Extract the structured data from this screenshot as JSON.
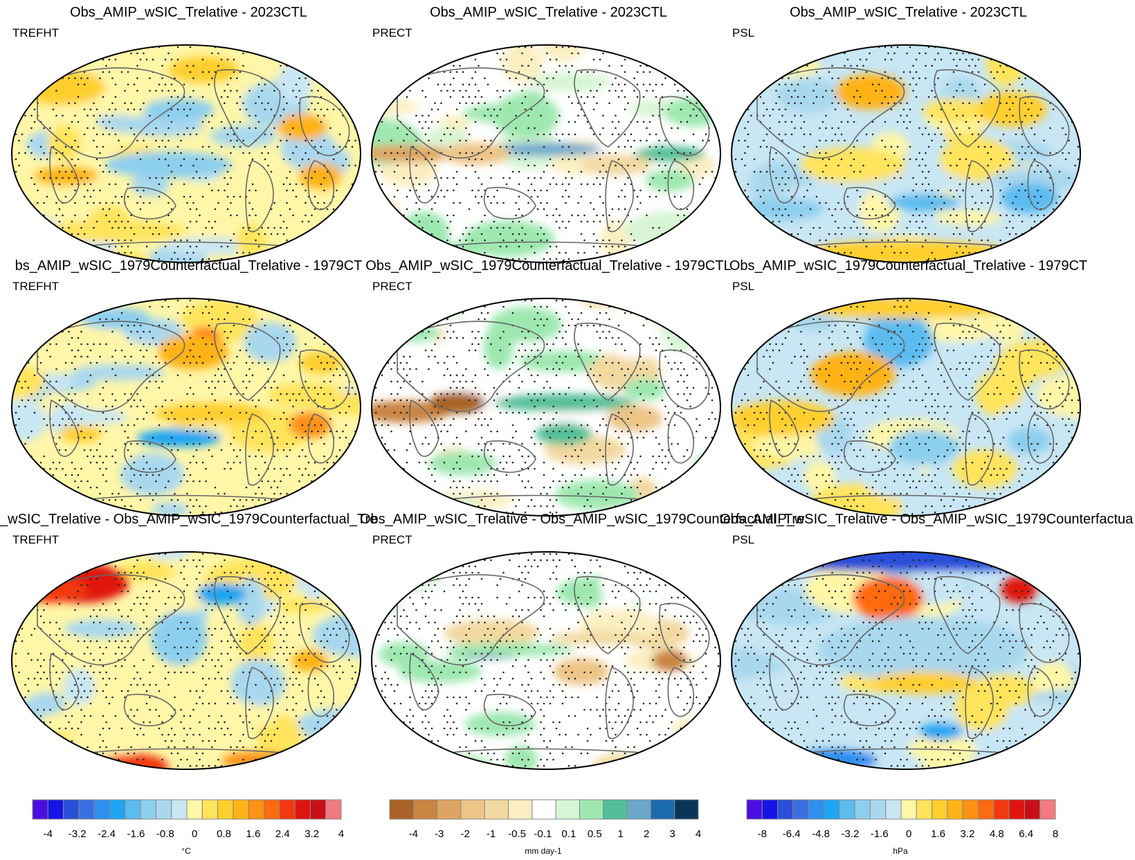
{
  "figure": {
    "rows": [
      {
        "titles": [
          "Obs_AMIP_wSIC_Trelative - 2023CTL",
          "Obs_AMIP_wSIC_Trelative - 2023CTL",
          "Obs_AMIP_wSIC_Trelative - 2023CTL"
        ],
        "variables": [
          "TREFHT",
          "PRECT",
          "PSL"
        ]
      },
      {
        "titles": [
          "bs_AMIP_wSIC_1979Counterfactual_Trelative - 1979CT",
          "Obs_AMIP_wSIC_1979Counterfactual_Trelative - 1979CTL",
          "Obs_AMIP_wSIC_1979Counterfactual_Trelative - 1979CT"
        ],
        "variables": [
          "TREFHT",
          "PRECT",
          "PSL"
        ]
      },
      {
        "titles": [
          "_wSIC_Trelative - Obs_AMIP_wSIC_1979Counterfactual_Tre",
          "Obs_AMIP_wSIC_Trelative - Obs_AMIP_wSIC_1979Counterfactual_Tre",
          "Obs_AMIP_wSIC_Trelative - Obs_AMIP_wSIC_1979Counterfactua"
        ],
        "variables": [
          "TREFHT",
          "PRECT",
          "PSL"
        ]
      }
    ]
  },
  "chart_data": {
    "type": "heatmap",
    "description_labels": "global map difference fields with stippling",
    "colorbars": [
      {
        "variable": "TREFHT",
        "unit": "°C",
        "tick_labels": [
          "-4",
          "-3.2",
          "-2.4",
          "-1.6",
          "-0.8",
          "0",
          "0.8",
          "1.6",
          "2.4",
          "3.2",
          "4"
        ],
        "colors": [
          "#4a0fe0",
          "#1414e6",
          "#2a4fd8",
          "#3a6fe2",
          "#2d8ff0",
          "#1ea6f2",
          "#5cbcf0",
          "#8ccfee",
          "#a9d8ee",
          "#c8e6f4",
          "#fff6a8",
          "#ffe45c",
          "#ffcf2e",
          "#ffb319",
          "#ff9214",
          "#ff6a0f",
          "#f2380f",
          "#e0140e",
          "#c80e16",
          "#f27a82"
        ]
      },
      {
        "variable": "PRECT",
        "unit": "mm day-1",
        "tick_labels": [
          "-4",
          "-3",
          "-2",
          "-1",
          "-0.5",
          "-0.1",
          "0.1",
          "0.5",
          "1",
          "2",
          "3",
          "4"
        ],
        "colors": [
          "#a96227",
          "#c98442",
          "#dea562",
          "#edc587",
          "#f2d9a0",
          "#fbefc2",
          "#ffffff",
          "#d7f5d4",
          "#9ee8b0",
          "#52bf98",
          "#6aa8cc",
          "#1c6ab0",
          "#0a3558"
        ]
      },
      {
        "variable": "PSL",
        "unit": "hPa",
        "tick_labels": [
          "-8",
          "-6.4",
          "-4.8",
          "-3.2",
          "-1.6",
          "0",
          "1.6",
          "3.2",
          "4.8",
          "6.4",
          "8"
        ],
        "colors": [
          "#4a0fe0",
          "#1414e6",
          "#2a4fd8",
          "#3a6fe2",
          "#2d8ff0",
          "#1ea6f2",
          "#5cbcf0",
          "#8ccfee",
          "#a9d8ee",
          "#c8e6f4",
          "#fff6a8",
          "#ffe45c",
          "#ffcf2e",
          "#ffb319",
          "#ff9214",
          "#ff6a0f",
          "#f2380f",
          "#e0140e",
          "#c80e16",
          "#f27a82"
        ]
      }
    ]
  }
}
